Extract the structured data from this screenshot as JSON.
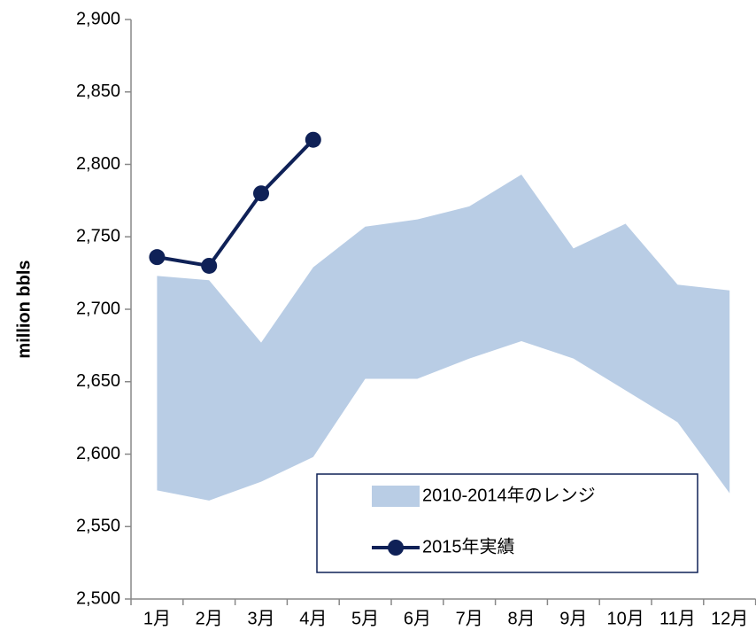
{
  "chart_data": {
    "type": "line",
    "ylabel": "million bbls",
    "categories": [
      "1月",
      "2月",
      "3月",
      "4月",
      "5月",
      "6月",
      "7月",
      "8月",
      "9月",
      "10月",
      "11月",
      "12月"
    ],
    "series": [
      {
        "name": "2010-2014年のレンジ",
        "type": "range",
        "color": "#b9cde5",
        "high": [
          2723,
          2720,
          2677,
          2729,
          2757,
          2762,
          2771,
          2793,
          2742,
          2759,
          2717,
          2713
        ],
        "low": [
          2575,
          2568,
          2581,
          2598,
          2652,
          2652,
          2666,
          2678,
          2666,
          2644,
          2622,
          2573
        ]
      },
      {
        "name": "2015年実績",
        "type": "line",
        "color": "#0f2157",
        "values": [
          2736,
          2730,
          2780,
          2817,
          null,
          null,
          null,
          null,
          null,
          null,
          null,
          null
        ]
      }
    ],
    "ylim": [
      2500,
      2900
    ],
    "yticks": [
      {
        "value": 2500,
        "label": "2,500"
      },
      {
        "value": 2550,
        "label": "2,550"
      },
      {
        "value": 2600,
        "label": "2,600"
      },
      {
        "value": 2650,
        "label": "2,650"
      },
      {
        "value": 2700,
        "label": "2,700"
      },
      {
        "value": 2750,
        "label": "2,750"
      },
      {
        "value": 2800,
        "label": "2,800"
      },
      {
        "value": 2850,
        "label": "2,850"
      },
      {
        "value": 2900,
        "label": "2,900"
      }
    ],
    "grid": false,
    "legend": "lower right"
  }
}
